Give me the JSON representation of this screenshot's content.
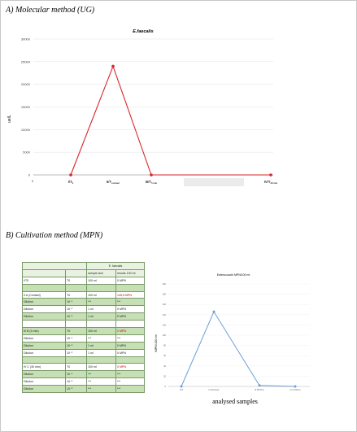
{
  "section_a": {
    "title": "A) Molecular method (UG)"
  },
  "section_b": {
    "title": "B) Cultivation method (MPN)"
  },
  "chart_data": [
    {
      "type": "line",
      "title": "E.faecalis",
      "ylabel": "ue/L",
      "xlabel": "",
      "x_origin_label": "0",
      "categories": [
        "I/T0",
        "II/Tcontact",
        "III/T5min",
        "IV/T30min"
      ],
      "category_labels": [
        {
          "main": "I/T",
          "sub": "0"
        },
        {
          "main": "II/T",
          "sub": "contact"
        },
        {
          "main": "III/T",
          "sub": "5 min"
        },
        {
          "main": "IV/T",
          "sub": "30 min"
        }
      ],
      "series": [
        {
          "values": [
            0,
            24000,
            0,
            0
          ],
          "color": "#d9262b"
        }
      ],
      "ylim": [
        0,
        30000
      ],
      "yticks": [
        0,
        5000,
        10000,
        15000,
        20000,
        25000,
        30000
      ],
      "grid": true
    },
    {
      "type": "table",
      "title": "E. faecalis",
      "columns": [
        "",
        "",
        "sample size",
        "results 100 ml"
      ],
      "rows": [
        {
          "c": [
            "I/T0",
            "T0",
            "100 ml",
            "0 MPN"
          ],
          "style": "white"
        },
        {
          "c": [
            "",
            "",
            "",
            ""
          ],
          "style": "green"
        },
        {
          "c": [
            "II A (Contact)",
            "T0",
            "100 ml",
            "145,8 MPN"
          ],
          "style": "white",
          "red": true
        },
        {
          "c": [
            "Dilution",
            "10⁻¹",
            "***",
            "***"
          ],
          "style": "green"
        },
        {
          "c": [
            "Dilution",
            "10⁻²",
            "1 ml",
            "0 MPN"
          ],
          "style": "white"
        },
        {
          "c": [
            "Dilution",
            "10⁻³",
            "1 ml",
            "0 MPN"
          ],
          "style": "green"
        },
        {
          "c": [
            "",
            "",
            "",
            ""
          ],
          "style": "white"
        },
        {
          "c": [
            "III B (5 min)",
            "T0",
            "100 ml",
            "2 MPN"
          ],
          "style": "green",
          "red": true
        },
        {
          "c": [
            "Dilution",
            "10⁻¹",
            "***",
            "***"
          ],
          "style": "white"
        },
        {
          "c": [
            "Dilution",
            "10⁻²",
            "1 ml",
            "0 MPN"
          ],
          "style": "green"
        },
        {
          "c": [
            "Dilution",
            "10⁻³",
            "1 ml",
            "0 MPN"
          ],
          "style": "white"
        },
        {
          "c": [
            "",
            "",
            "",
            ""
          ],
          "style": "green"
        },
        {
          "c": [
            "IV C (30 min)",
            "T0",
            "100 ml",
            "0 MPN"
          ],
          "style": "white",
          "red": true
        },
        {
          "c": [
            "Dilution",
            "10⁻¹",
            "***",
            "***"
          ],
          "style": "green"
        },
        {
          "c": [
            "Dilution",
            "10⁻²",
            "***",
            "***"
          ],
          "style": "white"
        },
        {
          "c": [
            "Dilution",
            "10⁻³",
            "***",
            "***"
          ],
          "style": "green"
        }
      ]
    },
    {
      "type": "line",
      "title": "Enterococchi MPN/100 ml",
      "ylabel": "MPN/100 ml",
      "xlabel": "analysed samples",
      "categories": [
        "I/T0",
        "II A/Tcontact",
        "III B/T5min",
        "IV C/T30min"
      ],
      "series": [
        {
          "values": [
            0,
            145.8,
            2,
            0
          ],
          "color": "#6a9fd8"
        }
      ],
      "ylim": [
        0,
        200
      ],
      "yticks": [
        0,
        20,
        40,
        60,
        80,
        100,
        120,
        140,
        160,
        180,
        200
      ],
      "grid": true
    }
  ]
}
